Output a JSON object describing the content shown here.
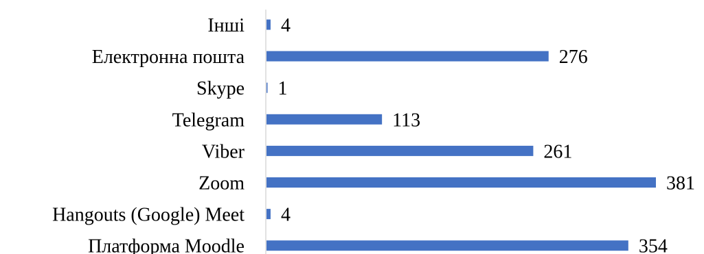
{
  "chart_data": {
    "type": "bar",
    "orientation": "horizontal",
    "categories": [
      "Інші",
      "Електронна пошта",
      "Skype",
      "Telegram",
      "Viber",
      "Zoom",
      "Hangouts (Google) Meet",
      "Платформа Moodle"
    ],
    "values": [
      4,
      276,
      1,
      113,
      261,
      381,
      4,
      354
    ],
    "title": "",
    "xlabel": "",
    "ylabel": "",
    "grid": false,
    "legend": "none",
    "show_data_labels": true
  },
  "colors": {
    "bar": "#4472C4",
    "axis": "#D9D9D9",
    "text": "#000000"
  }
}
